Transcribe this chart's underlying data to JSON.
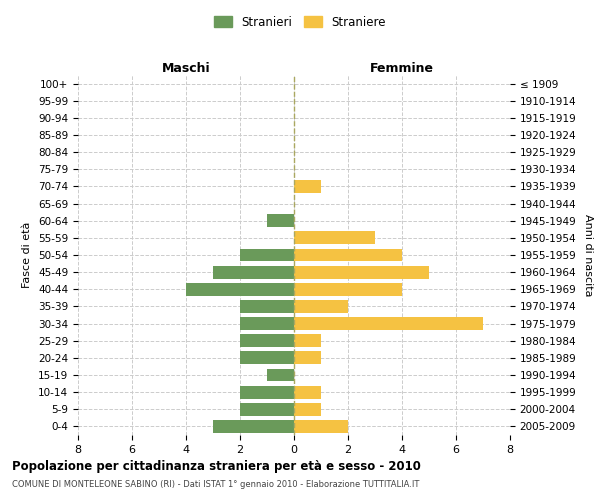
{
  "age_groups": [
    "100+",
    "95-99",
    "90-94",
    "85-89",
    "80-84",
    "75-79",
    "70-74",
    "65-69",
    "60-64",
    "55-59",
    "50-54",
    "45-49",
    "40-44",
    "35-39",
    "30-34",
    "25-29",
    "20-24",
    "15-19",
    "10-14",
    "5-9",
    "0-4"
  ],
  "birth_years": [
    "≤ 1909",
    "1910-1914",
    "1915-1919",
    "1920-1924",
    "1925-1929",
    "1930-1934",
    "1935-1939",
    "1940-1944",
    "1945-1949",
    "1950-1954",
    "1955-1959",
    "1960-1964",
    "1965-1969",
    "1970-1974",
    "1975-1979",
    "1980-1984",
    "1985-1989",
    "1990-1994",
    "1995-1999",
    "2000-2004",
    "2005-2009"
  ],
  "maschi": [
    0,
    0,
    0,
    0,
    0,
    0,
    0,
    0,
    1,
    0,
    2,
    3,
    4,
    2,
    2,
    2,
    2,
    1,
    2,
    2,
    3
  ],
  "femmine": [
    0,
    0,
    0,
    0,
    0,
    0,
    1,
    0,
    0,
    3,
    4,
    5,
    4,
    2,
    7,
    1,
    1,
    0,
    1,
    1,
    2
  ],
  "color_maschi": "#6a9a5a",
  "color_femmine": "#f5c242",
  "title_main": "Popolazione per cittadinanza straniera per età e sesso - 2010",
  "title_sub": "COMUNE DI MONTELEONE SABINO (RI) - Dati ISTAT 1° gennaio 2010 - Elaborazione TUTTITALIA.IT",
  "xlabel_left": "Maschi",
  "xlabel_right": "Femmine",
  "ylabel_left": "Fasce di età",
  "ylabel_right": "Anni di nascita",
  "legend_male": "Stranieri",
  "legend_female": "Straniere",
  "xlim": 8,
  "background_color": "#ffffff",
  "grid_color": "#cccccc"
}
